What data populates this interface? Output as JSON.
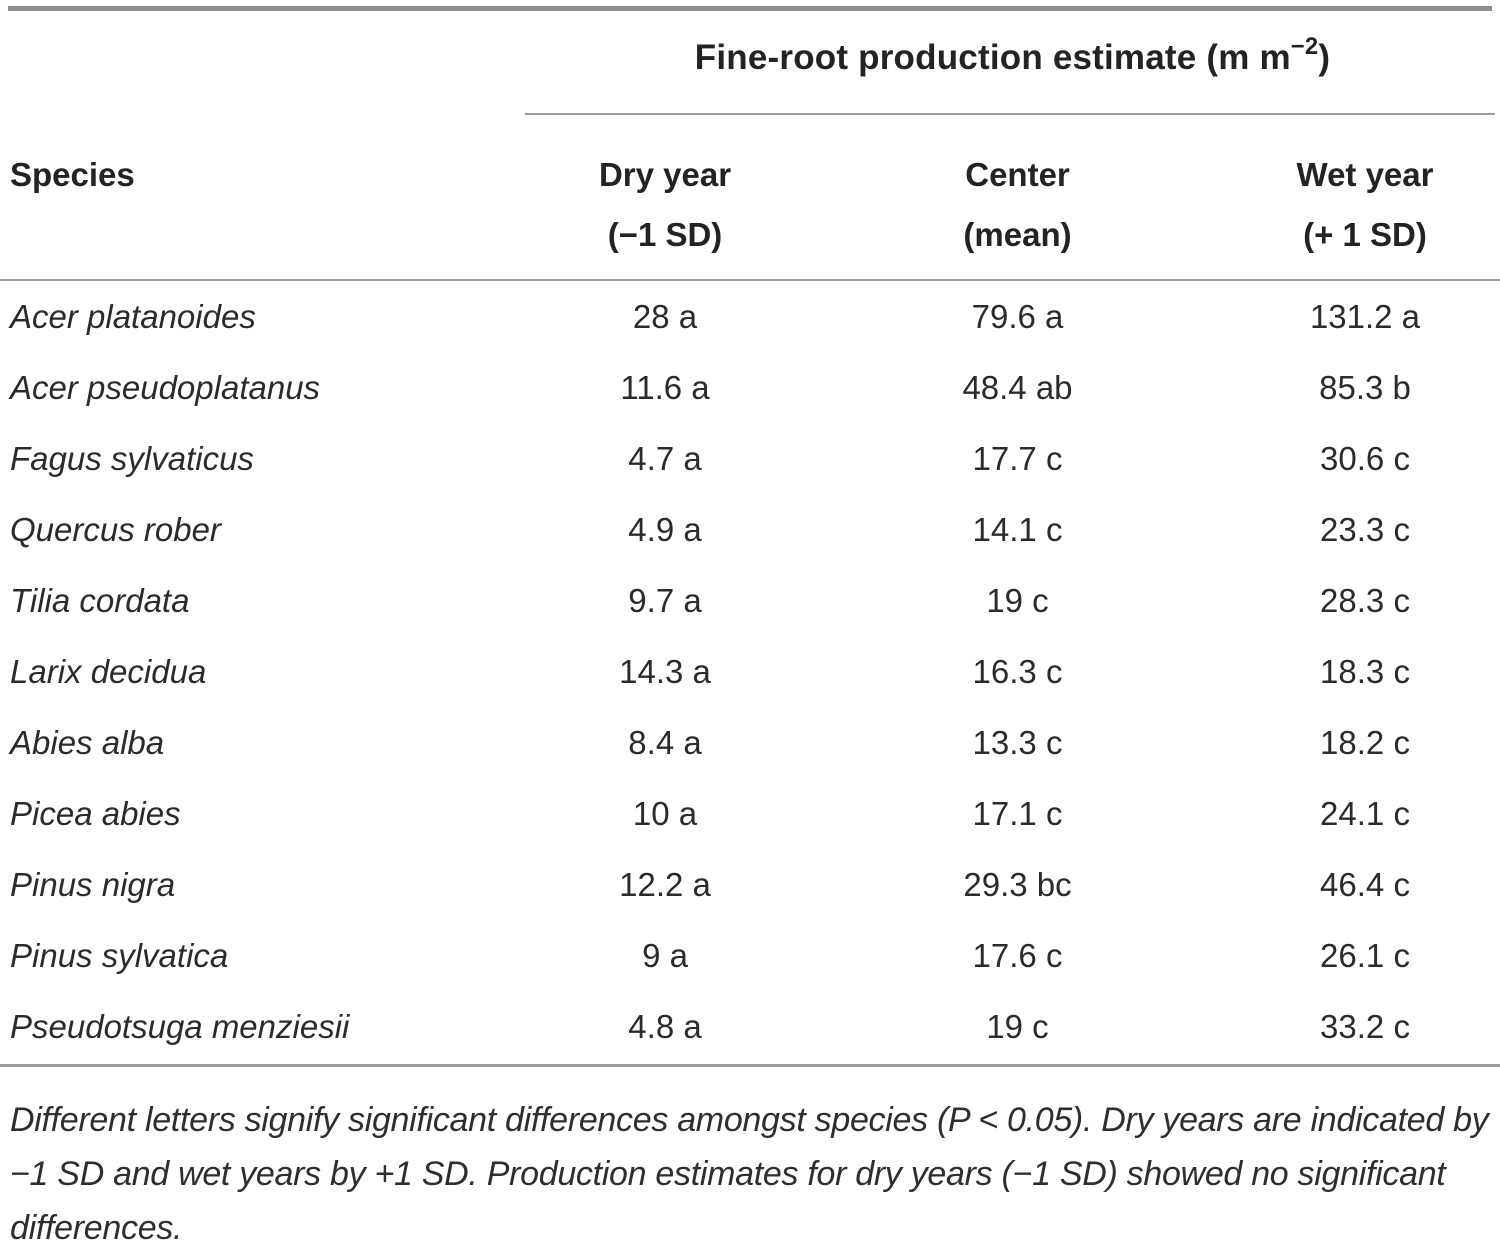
{
  "table": {
    "spanner": {
      "prefix": "Fine-root production estimate (m m",
      "sup": "−2",
      "suffix": ")"
    },
    "columns": {
      "species": "Species",
      "dry": {
        "line1": "Dry year",
        "line2": "(−1 SD)"
      },
      "center": {
        "line1": "Center",
        "line2": "(mean)"
      },
      "wet": {
        "line1": "Wet year",
        "line2": "(+ 1 SD)"
      }
    },
    "rows": [
      {
        "species": "Acer platanoides",
        "dry": "28 a",
        "center": "79.6 a",
        "wet": "131.2 a"
      },
      {
        "species": "Acer pseudoplatanus",
        "dry": "11.6 a",
        "center": "48.4 ab",
        "wet": "85.3 b"
      },
      {
        "species": "Fagus sylvaticus",
        "dry": "4.7 a",
        "center": "17.7 c",
        "wet": "30.6 c"
      },
      {
        "species": "Quercus rober",
        "dry": "4.9 a",
        "center": "14.1 c",
        "wet": "23.3 c"
      },
      {
        "species": "Tilia cordata",
        "dry": "9.7 a",
        "center": "19 c",
        "wet": "28.3 c"
      },
      {
        "species": "Larix decidua",
        "dry": "14.3 a",
        "center": "16.3 c",
        "wet": "18.3 c"
      },
      {
        "species": "Abies alba",
        "dry": "8.4 a",
        "center": "13.3 c",
        "wet": "18.2 c"
      },
      {
        "species": "Picea abies",
        "dry": "10 a",
        "center": "17.1 c",
        "wet": "24.1 c"
      },
      {
        "species": "Pinus nigra",
        "dry": "12.2 a",
        "center": "29.3 bc",
        "wet": "46.4 c"
      },
      {
        "species": "Pinus sylvatica",
        "dry": "9 a",
        "center": "17.6 c",
        "wet": "26.1 c"
      },
      {
        "species": "Pseudotsuga menziesii",
        "dry": "4.8 a",
        "center": "19 c",
        "wet": "33.2 c"
      }
    ],
    "footnote": "Different letters signify significant differences amongst species (P < 0.05). Dry years are indicated by −1 SD and wet years by +1 SD. Production estimates for dry years (−1 SD) showed no significant differences."
  },
  "colors": {
    "text": "#232323",
    "rule_heavy": "#8e9093",
    "rule_light": "#9c9c9c",
    "background": "#ffffff"
  }
}
